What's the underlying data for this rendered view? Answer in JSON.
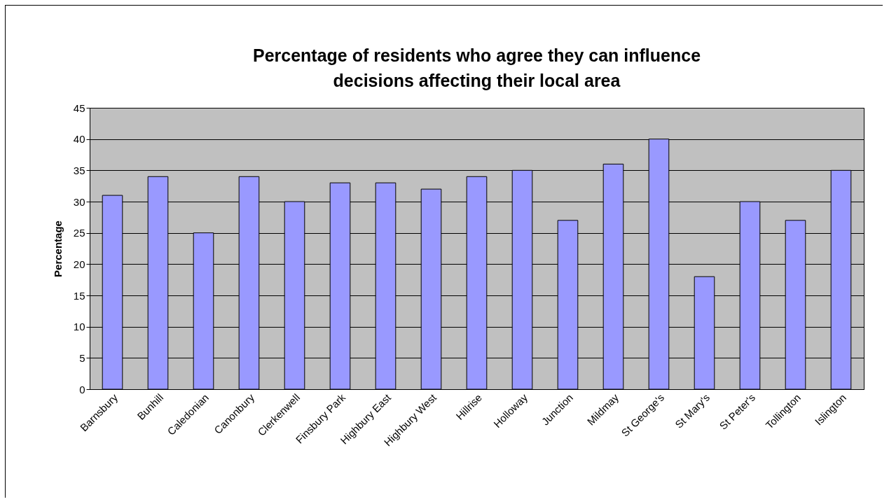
{
  "chart_data": {
    "type": "bar",
    "title": "Percentage of residents who agree they can influence decisions affecting their local area",
    "ylabel": "Percentage",
    "categories": [
      "Barnsbury",
      "Bunhill",
      "Caledonian",
      "Canonbury",
      "Clerkenwell",
      "Finsbury Park",
      "Highbury East",
      "Highbury West",
      "Hillrise",
      "Holloway",
      "Junction",
      "Mildmay",
      "St George's",
      "St Mary's",
      "St Peter's",
      "Tollington",
      "Islington"
    ],
    "values": [
      31,
      34,
      25,
      34,
      30,
      33,
      33,
      32,
      34,
      35,
      27,
      36,
      40,
      18,
      30,
      27,
      35
    ],
    "color": "#9999ff",
    "ylim": [
      0,
      45
    ],
    "yticks": [
      0,
      5,
      10,
      15,
      20,
      25,
      30,
      35,
      40,
      45
    ],
    "grid": "y",
    "legend": false
  }
}
